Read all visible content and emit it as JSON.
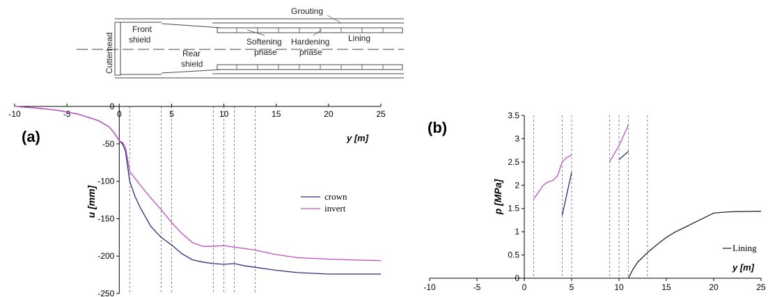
{
  "colors": {
    "crown": "#2b2a7a",
    "invert": "#c34bc3",
    "lining": "#222222",
    "axis": "#000000",
    "guide": "#666666",
    "diagram": "#444444"
  },
  "diagram": {
    "labels": {
      "grouting": "Grouting",
      "cutterhead": "Cutterhead",
      "front_shield_1": "Front",
      "front_shield_2": "shield",
      "rear_shield_1": "Rear",
      "rear_shield_2": "shield",
      "softening_1": "Softening",
      "softening_2": "phase",
      "hardening_1": "Hardening",
      "hardening_2": "phase",
      "lining": "Lining"
    }
  },
  "chart_data": [
    {
      "id": "a",
      "panel_label": "(a)",
      "type": "line",
      "xlabel": "y [m]",
      "ylabel": "u [mm]",
      "xlim": [
        -10,
        25
      ],
      "ylim": [
        -250,
        0
      ],
      "xticks": [
        "-10",
        "-5",
        "0",
        "5",
        "10",
        "15",
        "20",
        "25"
      ],
      "yticks": [
        "0",
        "-50",
        "-100",
        "-150",
        "-200",
        "-250"
      ],
      "vlines": [
        1,
        4,
        5,
        9,
        10,
        11,
        13
      ],
      "legend_position": "right",
      "series": [
        {
          "name": "crown",
          "color_key": "crown",
          "points": [
            [
              -10,
              0
            ],
            [
              -8,
              -2
            ],
            [
              -6,
              -5
            ],
            [
              -4,
              -10
            ],
            [
              -2,
              -19
            ],
            [
              -1,
              -27
            ],
            [
              -0.5,
              -35
            ],
            [
              0,
              -46
            ],
            [
              0.3,
              -50
            ],
            [
              0.6,
              -60
            ],
            [
              1,
              -100
            ],
            [
              1.5,
              -120
            ],
            [
              2,
              -135
            ],
            [
              3,
              -160
            ],
            [
              4,
              -175
            ],
            [
              5,
              -185
            ],
            [
              6,
              -197
            ],
            [
              7,
              -205
            ],
            [
              8,
              -208
            ],
            [
              9,
              -210
            ],
            [
              10,
              -211
            ],
            [
              11,
              -210
            ],
            [
              12,
              -213
            ],
            [
              13,
              -215
            ],
            [
              15,
              -219
            ],
            [
              17,
              -222
            ],
            [
              20,
              -224
            ],
            [
              22,
              -224
            ],
            [
              25,
              -224
            ]
          ]
        },
        {
          "name": "invert",
          "color_key": "invert",
          "points": [
            [
              -10,
              0
            ],
            [
              -8,
              -2
            ],
            [
              -6,
              -5
            ],
            [
              -4,
              -10
            ],
            [
              -2,
              -19
            ],
            [
              -1,
              -27
            ],
            [
              -0.5,
              -35
            ],
            [
              0,
              -46
            ],
            [
              0.3,
              -48
            ],
            [
              0.6,
              -55
            ],
            [
              1,
              -87
            ],
            [
              2,
              -105
            ],
            [
              3,
              -122
            ],
            [
              4,
              -138
            ],
            [
              5,
              -155
            ],
            [
              6,
              -170
            ],
            [
              7,
              -182
            ],
            [
              8,
              -187
            ],
            [
              9,
              -187
            ],
            [
              10,
              -186
            ],
            [
              11,
              -188
            ],
            [
              12,
              -190
            ],
            [
              13,
              -192
            ],
            [
              15,
              -198
            ],
            [
              17,
              -202
            ],
            [
              20,
              -204
            ],
            [
              22,
              -205
            ],
            [
              25,
              -206
            ]
          ]
        }
      ]
    },
    {
      "id": "b",
      "panel_label": "(b)",
      "type": "line",
      "xlabel": "y [m]",
      "ylabel": "p [MPa]",
      "xlim": [
        -10,
        25
      ],
      "ylim": [
        0,
        3.5
      ],
      "xticks": [
        "-10",
        "-5",
        "0",
        "5",
        "10",
        "15",
        "20",
        "25"
      ],
      "yticks": [
        "0",
        "0.5",
        "1",
        "1.5",
        "2",
        "2.5",
        "3",
        "3.5"
      ],
      "vlines": [
        1,
        4,
        5,
        9,
        10,
        11,
        13
      ],
      "legend_position": "right",
      "series": [
        {
          "name": "",
          "color_key": "invert",
          "segments": [
            [
              [
                1,
                1.7
              ],
              [
                1.5,
                1.85
              ],
              [
                2,
                2.0
              ],
              [
                2.5,
                2.07
              ],
              [
                3,
                2.1
              ],
              [
                3.5,
                2.2
              ],
              [
                4,
                2.5
              ],
              [
                4.5,
                2.6
              ],
              [
                5,
                2.65
              ]
            ],
            [
              [
                9,
                2.5
              ],
              [
                10,
                2.85
              ],
              [
                11,
                3.3
              ]
            ]
          ]
        },
        {
          "name": "",
          "color_key": "crown",
          "segments": [
            [
              [
                4,
                1.35
              ],
              [
                5,
                2.28
              ]
            ],
            [
              [
                10,
                2.55
              ],
              [
                11,
                2.73
              ]
            ]
          ]
        },
        {
          "name": "Lining",
          "color_key": "lining",
          "segments": [
            [
              [
                11,
                0
              ],
              [
                11.5,
                0.2
              ],
              [
                12,
                0.35
              ],
              [
                13,
                0.55
              ],
              [
                14,
                0.72
              ],
              [
                15,
                0.88
              ],
              [
                16,
                1.0
              ],
              [
                17,
                1.1
              ],
              [
                18,
                1.2
              ],
              [
                19,
                1.3
              ],
              [
                20,
                1.4
              ],
              [
                21,
                1.42
              ],
              [
                22,
                1.43
              ],
              [
                25,
                1.44
              ]
            ]
          ]
        }
      ]
    }
  ]
}
